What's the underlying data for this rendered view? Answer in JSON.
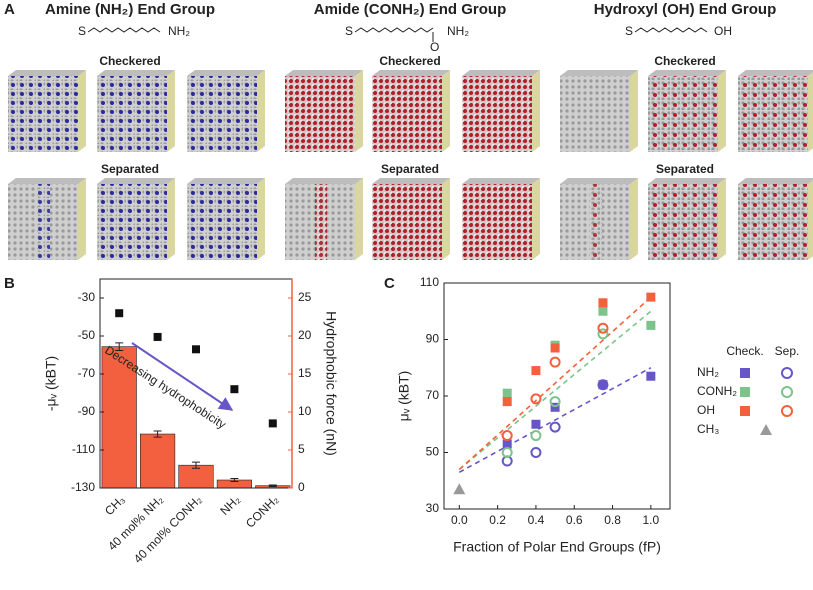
{
  "panels": {
    "letters": [
      "A",
      "B",
      "C"
    ],
    "groups": [
      {
        "title": "Amine (NH₂) End Group",
        "formula": [
          "S",
          "NH₂"
        ],
        "checkered": "Checkered",
        "separated": "Separated"
      },
      {
        "title": "Amide (CONH₂) End Group",
        "formula": [
          "S",
          "NH₂",
          "O"
        ],
        "checkered": "Checkered",
        "separated": "Separated"
      },
      {
        "title": "Hydroxyl (OH) End Group",
        "formula": [
          "S",
          "OH"
        ],
        "checkered": "Checkered",
        "separated": "Separated"
      }
    ]
  },
  "chart_data": [
    {
      "type": "bar",
      "categories": [
        "CH₃",
        "40 mol% NH₂",
        "40 mol% CONH₂",
        "NH₂",
        "CONH₂"
      ],
      "ylabel": "-μᵥ (kBT)",
      "ylim": [
        -130,
        -20
      ],
      "yticks": [
        -30,
        -50,
        -70,
        -90,
        -110,
        -130
      ],
      "y2label": "Hydrophobic force (nN)",
      "y2lim": [
        0,
        27.5
      ],
      "y2ticks": [
        0,
        5,
        10,
        15,
        20,
        25
      ],
      "y2color": "#f0603a",
      "series": [
        {
          "axis": "y2",
          "color": "#f2603f",
          "values": [
            18.6,
            7.1,
            3.0,
            1.05,
            0.3
          ],
          "errors": [
            0.5,
            0.4,
            0.4,
            0.2,
            0.1
          ]
        },
        {
          "axis": "y",
          "color": "#111111",
          "values": [
            -38,
            -50.5,
            -57,
            -78,
            -96
          ]
        }
      ],
      "annotation": {
        "text": "Decreasing hydrophobicity",
        "color": "#6656c8"
      }
    },
    {
      "type": "scatter",
      "xlabel": "Fraction of Polar End Groups (fP)",
      "ylabel": "μᵥ (kBT)",
      "xlim": [
        -0.08,
        1.1
      ],
      "xticks": [
        {
          "value": 0,
          "label": "0.0"
        },
        0.2,
        0.4,
        0.6,
        0.8,
        {
          "value": 1,
          "label": "1.0"
        }
      ],
      "ylim": [
        30,
        110
      ],
      "yticks": [
        30,
        50,
        70,
        90,
        110
      ],
      "legend_columns": [
        "Check.",
        "Sep."
      ],
      "groups": [
        {
          "name": "NH₂",
          "color": "#6656c8",
          "check": {
            "x": [
              0.25,
              0.4,
              0.5,
              0.75,
              1.0
            ],
            "values": [
              53,
              60,
              66,
              74,
              77
            ]
          },
          "sep": {
            "x": [
              0.25,
              0.4,
              0.5,
              0.75
            ],
            "values": [
              47,
              50,
              59,
              74
            ]
          },
          "fit": {
            "x": [
              0,
              1
            ],
            "values": [
              43,
              80
            ]
          }
        },
        {
          "name": "CONH₂",
          "color": "#7cc38c",
          "check": {
            "x": [
              0.25,
              0.5,
              0.75,
              1.0
            ],
            "values": [
              71,
              88,
              100,
              95
            ]
          },
          "sep": {
            "x": [
              0.25,
              0.4,
              0.5,
              0.75
            ],
            "values": [
              50,
              56,
              68,
              92
            ]
          },
          "fit": {
            "x": [
              0,
              1
            ],
            "values": [
              44,
              100
            ]
          }
        },
        {
          "name": "OH",
          "color": "#f4603c",
          "check": {
            "x": [
              0.25,
              0.4,
              0.5,
              0.75,
              1.0
            ],
            "values": [
              68,
              79,
              87,
              103,
              105
            ]
          },
          "sep": {
            "x": [
              0.25,
              0.4,
              0.5,
              0.75
            ],
            "values": [
              56,
              69,
              82,
              94
            ]
          },
          "fit": {
            "x": [
              0,
              1
            ],
            "values": [
              44,
              105
            ]
          }
        }
      ],
      "reference": {
        "name": "CH₃",
        "color": "#999999",
        "x": [
          0
        ],
        "values": [
          37
        ]
      }
    }
  ]
}
